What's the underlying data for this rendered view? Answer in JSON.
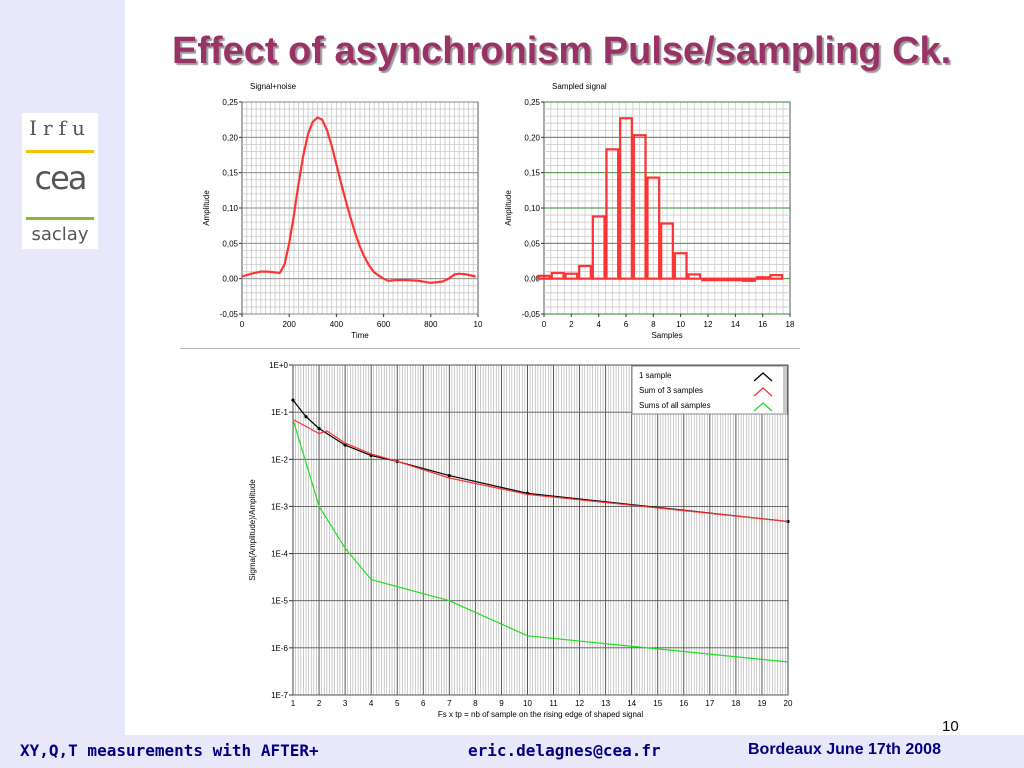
{
  "slide": {
    "title": "Effect of asynchronism Pulse/sampling Ck.",
    "page_number": "10",
    "footer_left": "XY,Q,T measurements with AFTER+",
    "footer_mid": "eric.delagnes@cea.fr",
    "footer_right": "Bordeaux June 17th 2008"
  },
  "logo": {
    "line1": "Irfu",
    "line2": "cea",
    "line3": "saclay"
  },
  "colors": {
    "title": "#993366",
    "footer": "#000080",
    "band": "#e8e8fa",
    "red": "#ff3333",
    "green": "#22dd22",
    "black": "#000000"
  },
  "chart_data": [
    {
      "type": "line",
      "title": "Signal+noise",
      "xlabel": "Time",
      "ylabel": "Amplitude",
      "xlim": [
        0,
        1000
      ],
      "ylim": [
        -0.05,
        0.25
      ],
      "x_ticks": [
        "0",
        "200",
        "400",
        "600",
        "800",
        "10"
      ],
      "y_ticks": [
        "-0,05",
        "0,00",
        "0,05",
        "0,10",
        "0,15",
        "0,20",
        "0,25"
      ],
      "grid": true,
      "series": [
        {
          "color": "#ff3333",
          "x": [
            0,
            40,
            80,
            110,
            160,
            180,
            200,
            220,
            240,
            260,
            280,
            300,
            320,
            340,
            360,
            380,
            400,
            420,
            440,
            460,
            480,
            500,
            520,
            540,
            560,
            580,
            600,
            620,
            650,
            700,
            750,
            800,
            850,
            880,
            900,
            920,
            950,
            990
          ],
          "y": [
            0.003,
            0.007,
            0.01,
            0.01,
            0.008,
            0.02,
            0.05,
            0.09,
            0.135,
            0.175,
            0.205,
            0.222,
            0.228,
            0.225,
            0.21,
            0.188,
            0.162,
            0.135,
            0.11,
            0.086,
            0.064,
            0.045,
            0.03,
            0.018,
            0.009,
            0.004,
            0.0,
            -0.003,
            -0.002,
            -0.002,
            -0.003,
            -0.006,
            -0.004,
            0.001,
            0.006,
            0.007,
            0.006,
            0.003
          ]
        }
      ]
    },
    {
      "type": "bar",
      "title": "Sampled signal",
      "xlabel": "Samples",
      "ylabel": "Amplitude",
      "xlim": [
        0,
        18
      ],
      "ylim": [
        -0.05,
        0.25
      ],
      "x_ticks": [
        "0",
        "2",
        "4",
        "6",
        "8",
        "10",
        "12",
        "14",
        "16",
        "18"
      ],
      "y_ticks": [
        "-0,05",
        "0,00",
        "0,05",
        "0,10",
        "0,15",
        "0,20",
        "0,25"
      ],
      "grid": true,
      "series": [
        {
          "color": "#ff3333",
          "x": [
            0,
            1,
            2,
            3,
            4,
            5,
            6,
            7,
            8,
            9,
            10,
            11,
            12,
            13,
            14,
            15,
            16,
            17
          ],
          "y": [
            0.004,
            0.008,
            0.007,
            0.018,
            0.088,
            0.183,
            0.227,
            0.203,
            0.143,
            0.078,
            0.036,
            0.006,
            -0.002,
            -0.001,
            -0.001,
            -0.003,
            0.002,
            0.005
          ]
        }
      ]
    },
    {
      "type": "line",
      "title": "",
      "xlabel": "Fs x tp = nb of sample on the rising edge of shaped signal",
      "ylabel": "Sigma(Amplitude)/Amplitude",
      "x_scale": "linear",
      "y_scale": "log",
      "xlim": [
        1,
        20
      ],
      "ylim": [
        1e-07,
        1
      ],
      "x_ticks": [
        "1",
        "2",
        "3",
        "4",
        "5",
        "6",
        "7",
        "8",
        "9",
        "10",
        "11",
        "12",
        "13",
        "14",
        "15",
        "16",
        "17",
        "18",
        "19",
        "20"
      ],
      "y_ticks": [
        "1E+0",
        "1E-1",
        "1E-2",
        "1E-3",
        "1E-4",
        "1E-5",
        "1E-6",
        "1E-7"
      ],
      "grid": true,
      "legend_position": "top-right",
      "series": [
        {
          "name": "1 sample",
          "color": "#000000",
          "markers": true,
          "x": [
            1,
            1.5,
            2,
            3,
            4,
            5,
            7,
            10,
            20
          ],
          "y": [
            0.18,
            0.08,
            0.045,
            0.02,
            0.012,
            0.009,
            0.0045,
            0.0019,
            0.00048
          ]
        },
        {
          "name": "Sum of 3 samples",
          "color": "#ff3333",
          "markers": false,
          "x": [
            1,
            2,
            2.3,
            3,
            4,
            5,
            7,
            10,
            20
          ],
          "y": [
            0.07,
            0.035,
            0.04,
            0.022,
            0.013,
            0.009,
            0.004,
            0.0018,
            0.00048
          ]
        },
        {
          "name": "Sums of all samples",
          "color": "#22dd22",
          "markers": false,
          "x": [
            1,
            2,
            3,
            4,
            7,
            10,
            20
          ],
          "y": [
            0.07,
            0.001,
            0.00013,
            2.8e-05,
            1e-05,
            1.8e-06,
            5e-07
          ]
        }
      ]
    }
  ]
}
